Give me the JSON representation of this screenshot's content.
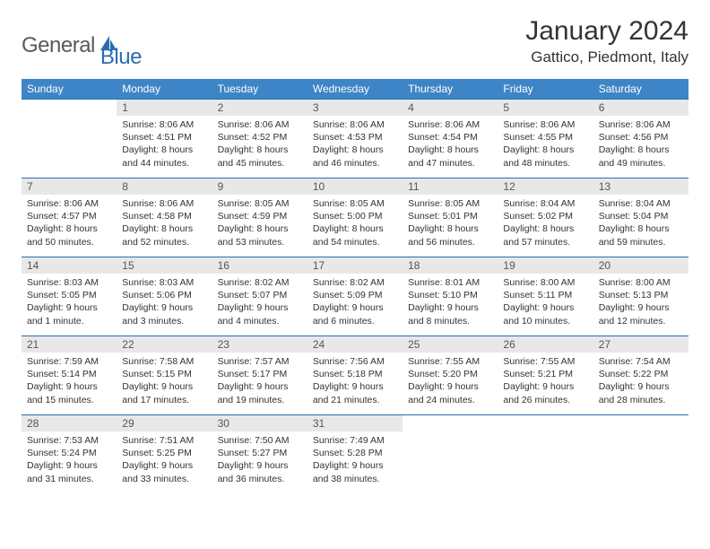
{
  "logo": {
    "word1": "General",
    "word2": "Blue"
  },
  "title": "January 2024",
  "location": "Gattico, Piedmont, Italy",
  "colors": {
    "header_bg": "#3d85c6",
    "header_text": "#ffffff",
    "daynum_bg": "#e8e8e8",
    "border": "#2a6db0",
    "logo_gray": "#5a5a5a",
    "logo_blue": "#2a6db0"
  },
  "day_headers": [
    "Sunday",
    "Monday",
    "Tuesday",
    "Wednesday",
    "Thursday",
    "Friday",
    "Saturday"
  ],
  "weeks": [
    [
      {
        "n": "",
        "sunrise": "",
        "sunset": "",
        "daylight": ""
      },
      {
        "n": "1",
        "sunrise": "Sunrise: 8:06 AM",
        "sunset": "Sunset: 4:51 PM",
        "daylight": "Daylight: 8 hours and 44 minutes."
      },
      {
        "n": "2",
        "sunrise": "Sunrise: 8:06 AM",
        "sunset": "Sunset: 4:52 PM",
        "daylight": "Daylight: 8 hours and 45 minutes."
      },
      {
        "n": "3",
        "sunrise": "Sunrise: 8:06 AM",
        "sunset": "Sunset: 4:53 PM",
        "daylight": "Daylight: 8 hours and 46 minutes."
      },
      {
        "n": "4",
        "sunrise": "Sunrise: 8:06 AM",
        "sunset": "Sunset: 4:54 PM",
        "daylight": "Daylight: 8 hours and 47 minutes."
      },
      {
        "n": "5",
        "sunrise": "Sunrise: 8:06 AM",
        "sunset": "Sunset: 4:55 PM",
        "daylight": "Daylight: 8 hours and 48 minutes."
      },
      {
        "n": "6",
        "sunrise": "Sunrise: 8:06 AM",
        "sunset": "Sunset: 4:56 PM",
        "daylight": "Daylight: 8 hours and 49 minutes."
      }
    ],
    [
      {
        "n": "7",
        "sunrise": "Sunrise: 8:06 AM",
        "sunset": "Sunset: 4:57 PM",
        "daylight": "Daylight: 8 hours and 50 minutes."
      },
      {
        "n": "8",
        "sunrise": "Sunrise: 8:06 AM",
        "sunset": "Sunset: 4:58 PM",
        "daylight": "Daylight: 8 hours and 52 minutes."
      },
      {
        "n": "9",
        "sunrise": "Sunrise: 8:05 AM",
        "sunset": "Sunset: 4:59 PM",
        "daylight": "Daylight: 8 hours and 53 minutes."
      },
      {
        "n": "10",
        "sunrise": "Sunrise: 8:05 AM",
        "sunset": "Sunset: 5:00 PM",
        "daylight": "Daylight: 8 hours and 54 minutes."
      },
      {
        "n": "11",
        "sunrise": "Sunrise: 8:05 AM",
        "sunset": "Sunset: 5:01 PM",
        "daylight": "Daylight: 8 hours and 56 minutes."
      },
      {
        "n": "12",
        "sunrise": "Sunrise: 8:04 AM",
        "sunset": "Sunset: 5:02 PM",
        "daylight": "Daylight: 8 hours and 57 minutes."
      },
      {
        "n": "13",
        "sunrise": "Sunrise: 8:04 AM",
        "sunset": "Sunset: 5:04 PM",
        "daylight": "Daylight: 8 hours and 59 minutes."
      }
    ],
    [
      {
        "n": "14",
        "sunrise": "Sunrise: 8:03 AM",
        "sunset": "Sunset: 5:05 PM",
        "daylight": "Daylight: 9 hours and 1 minute."
      },
      {
        "n": "15",
        "sunrise": "Sunrise: 8:03 AM",
        "sunset": "Sunset: 5:06 PM",
        "daylight": "Daylight: 9 hours and 3 minutes."
      },
      {
        "n": "16",
        "sunrise": "Sunrise: 8:02 AM",
        "sunset": "Sunset: 5:07 PM",
        "daylight": "Daylight: 9 hours and 4 minutes."
      },
      {
        "n": "17",
        "sunrise": "Sunrise: 8:02 AM",
        "sunset": "Sunset: 5:09 PM",
        "daylight": "Daylight: 9 hours and 6 minutes."
      },
      {
        "n": "18",
        "sunrise": "Sunrise: 8:01 AM",
        "sunset": "Sunset: 5:10 PM",
        "daylight": "Daylight: 9 hours and 8 minutes."
      },
      {
        "n": "19",
        "sunrise": "Sunrise: 8:00 AM",
        "sunset": "Sunset: 5:11 PM",
        "daylight": "Daylight: 9 hours and 10 minutes."
      },
      {
        "n": "20",
        "sunrise": "Sunrise: 8:00 AM",
        "sunset": "Sunset: 5:13 PM",
        "daylight": "Daylight: 9 hours and 12 minutes."
      }
    ],
    [
      {
        "n": "21",
        "sunrise": "Sunrise: 7:59 AM",
        "sunset": "Sunset: 5:14 PM",
        "daylight": "Daylight: 9 hours and 15 minutes."
      },
      {
        "n": "22",
        "sunrise": "Sunrise: 7:58 AM",
        "sunset": "Sunset: 5:15 PM",
        "daylight": "Daylight: 9 hours and 17 minutes."
      },
      {
        "n": "23",
        "sunrise": "Sunrise: 7:57 AM",
        "sunset": "Sunset: 5:17 PM",
        "daylight": "Daylight: 9 hours and 19 minutes."
      },
      {
        "n": "24",
        "sunrise": "Sunrise: 7:56 AM",
        "sunset": "Sunset: 5:18 PM",
        "daylight": "Daylight: 9 hours and 21 minutes."
      },
      {
        "n": "25",
        "sunrise": "Sunrise: 7:55 AM",
        "sunset": "Sunset: 5:20 PM",
        "daylight": "Daylight: 9 hours and 24 minutes."
      },
      {
        "n": "26",
        "sunrise": "Sunrise: 7:55 AM",
        "sunset": "Sunset: 5:21 PM",
        "daylight": "Daylight: 9 hours and 26 minutes."
      },
      {
        "n": "27",
        "sunrise": "Sunrise: 7:54 AM",
        "sunset": "Sunset: 5:22 PM",
        "daylight": "Daylight: 9 hours and 28 minutes."
      }
    ],
    [
      {
        "n": "28",
        "sunrise": "Sunrise: 7:53 AM",
        "sunset": "Sunset: 5:24 PM",
        "daylight": "Daylight: 9 hours and 31 minutes."
      },
      {
        "n": "29",
        "sunrise": "Sunrise: 7:51 AM",
        "sunset": "Sunset: 5:25 PM",
        "daylight": "Daylight: 9 hours and 33 minutes."
      },
      {
        "n": "30",
        "sunrise": "Sunrise: 7:50 AM",
        "sunset": "Sunset: 5:27 PM",
        "daylight": "Daylight: 9 hours and 36 minutes."
      },
      {
        "n": "31",
        "sunrise": "Sunrise: 7:49 AM",
        "sunset": "Sunset: 5:28 PM",
        "daylight": "Daylight: 9 hours and 38 minutes."
      },
      {
        "n": "",
        "sunrise": "",
        "sunset": "",
        "daylight": ""
      },
      {
        "n": "",
        "sunrise": "",
        "sunset": "",
        "daylight": ""
      },
      {
        "n": "",
        "sunrise": "",
        "sunset": "",
        "daylight": ""
      }
    ]
  ]
}
